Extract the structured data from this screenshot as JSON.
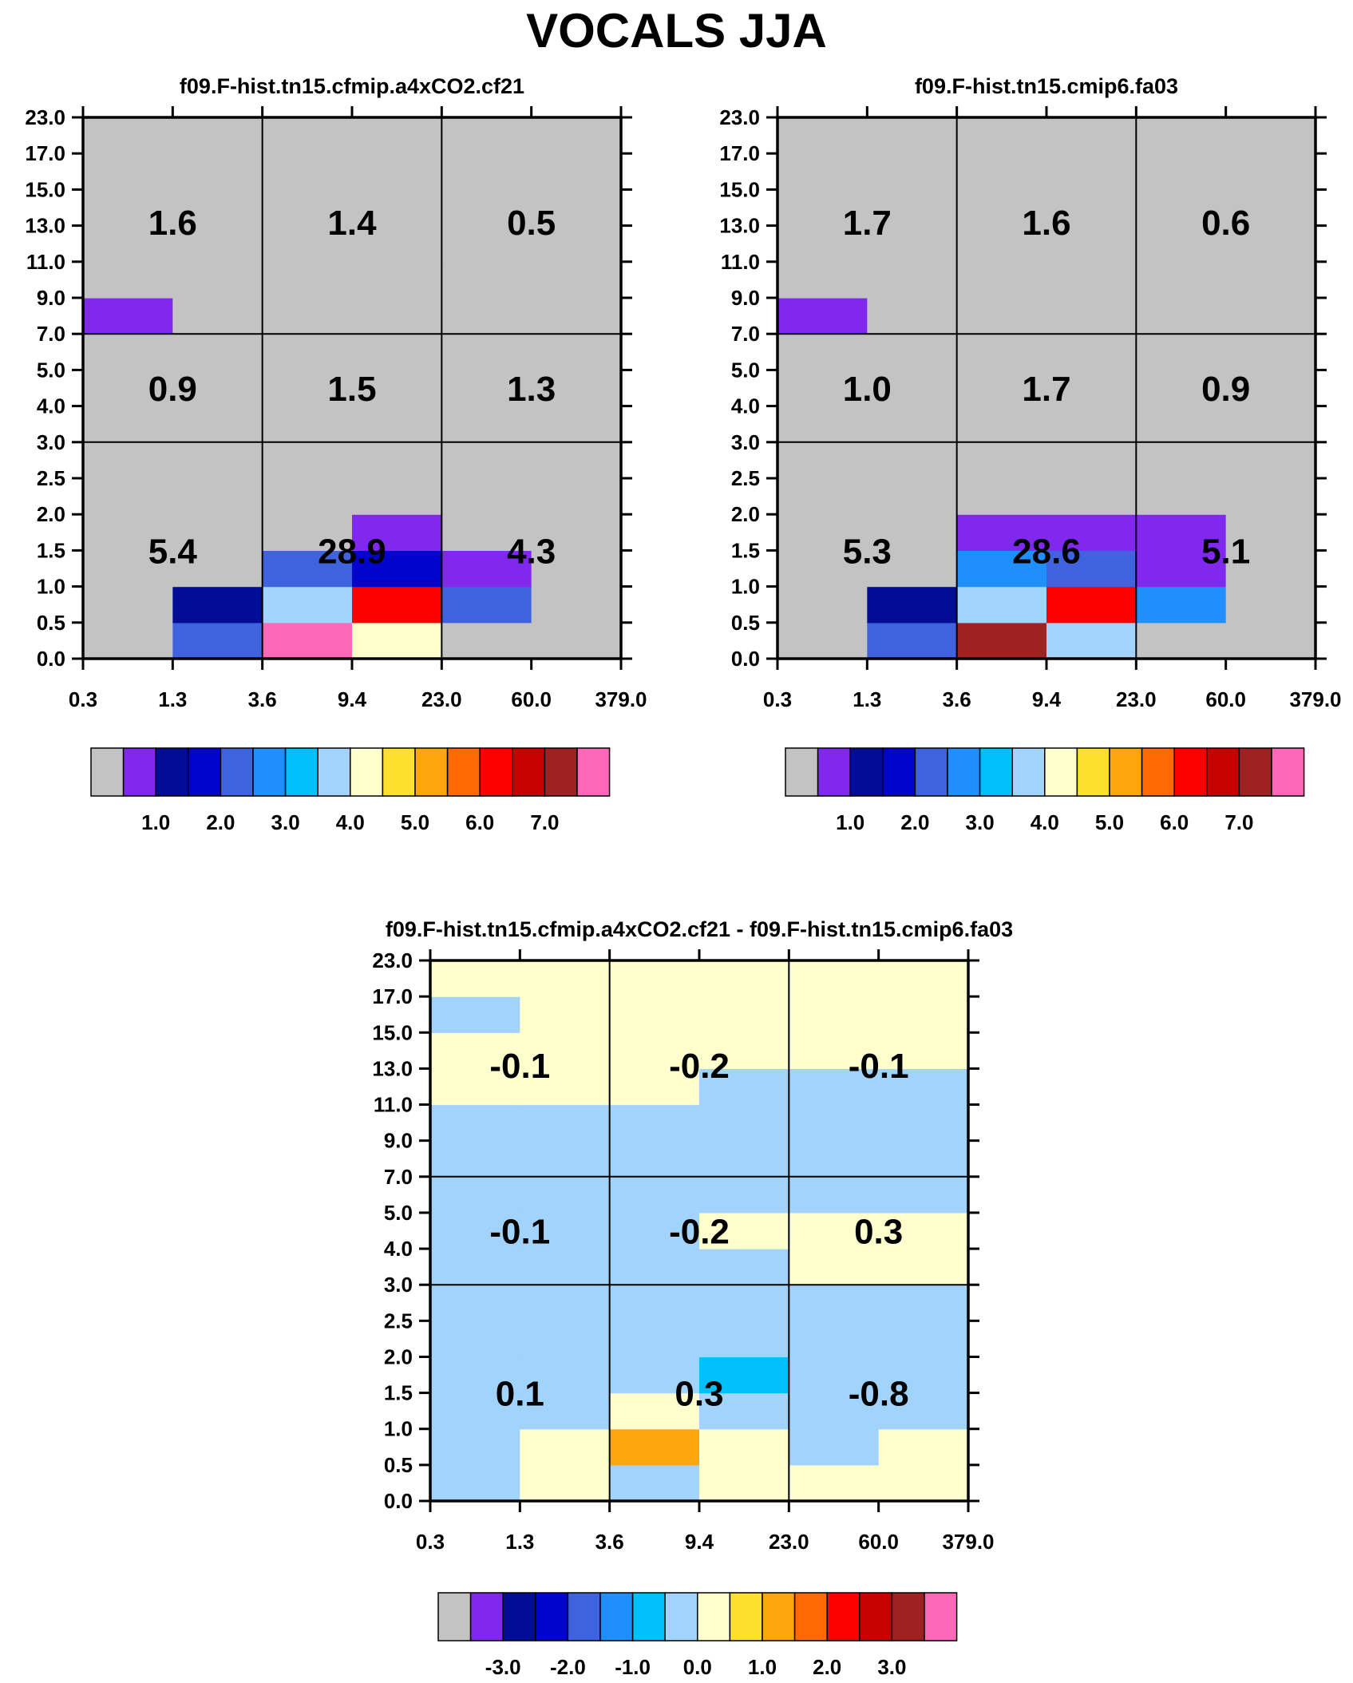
{
  "title": "VOCALS JJA",
  "colors": {
    "missing": "#c3c3c3",
    "palette": [
      "#c3c3c3",
      "#8028ee",
      "#000d94",
      "#0105cc",
      "#3f63df",
      "#1e8ffc",
      "#00c0fc",
      "#a2d3fb",
      "#feffcd",
      "#fde02d",
      "#fca60b",
      "#fc6a01",
      "#fc0000",
      "#c70000",
      "#a02121",
      "#fe68b8"
    ]
  },
  "chart_data": [
    {
      "type": "heatmap",
      "title": "f09.F-hist.tn15.cfmip.a4xCO2.cf21",
      "x_ticks": [
        "0.3",
        "1.3",
        "3.6",
        "9.4",
        "23.0",
        "60.0",
        "379.0"
      ],
      "y_ticks": [
        "0.0",
        "0.5",
        "1.0",
        "1.5",
        "2.0",
        "2.5",
        "3.0",
        "4.0",
        "5.0",
        "7.0",
        "9.0",
        "11.0",
        "13.0",
        "15.0",
        "17.0",
        "23.0"
      ],
      "cell_colors": [
        [
          "#c3c3c3",
          "#3f63df",
          "#fe68b8",
          "#feffcd",
          "#c3c3c3",
          "#c3c3c3"
        ],
        [
          "#c3c3c3",
          "#000d94",
          "#a2d3fb",
          "#fc0000",
          "#3f63df",
          "#c3c3c3"
        ],
        [
          "#c3c3c3",
          "#c3c3c3",
          "#3f63df",
          "#0105cc",
          "#8028ee",
          "#c3c3c3"
        ],
        [
          "#c3c3c3",
          "#c3c3c3",
          "#c3c3c3",
          "#8028ee",
          "#c3c3c3",
          "#c3c3c3"
        ],
        [
          "#c3c3c3",
          "#c3c3c3",
          "#c3c3c3",
          "#c3c3c3",
          "#c3c3c3",
          "#c3c3c3"
        ],
        [
          "#c3c3c3",
          "#c3c3c3",
          "#c3c3c3",
          "#c3c3c3",
          "#c3c3c3",
          "#c3c3c3"
        ],
        [
          "#c3c3c3",
          "#c3c3c3",
          "#c3c3c3",
          "#c3c3c3",
          "#c3c3c3",
          "#c3c3c3"
        ],
        [
          "#c3c3c3",
          "#c3c3c3",
          "#c3c3c3",
          "#c3c3c3",
          "#c3c3c3",
          "#c3c3c3"
        ],
        [
          "#c3c3c3",
          "#c3c3c3",
          "#c3c3c3",
          "#c3c3c3",
          "#c3c3c3",
          "#c3c3c3"
        ],
        [
          "#8028ee",
          "#c3c3c3",
          "#c3c3c3",
          "#c3c3c3",
          "#c3c3c3",
          "#c3c3c3"
        ],
        [
          "#c3c3c3",
          "#c3c3c3",
          "#c3c3c3",
          "#c3c3c3",
          "#c3c3c3",
          "#c3c3c3"
        ],
        [
          "#c3c3c3",
          "#c3c3c3",
          "#c3c3c3",
          "#c3c3c3",
          "#c3c3c3",
          "#c3c3c3"
        ],
        [
          "#c3c3c3",
          "#c3c3c3",
          "#c3c3c3",
          "#c3c3c3",
          "#c3c3c3",
          "#c3c3c3"
        ],
        [
          "#c3c3c3",
          "#c3c3c3",
          "#c3c3c3",
          "#c3c3c3",
          "#c3c3c3",
          "#c3c3c3"
        ],
        [
          "#c3c3c3",
          "#c3c3c3",
          "#c3c3c3",
          "#c3c3c3",
          "#c3c3c3",
          "#c3c3c3"
        ]
      ],
      "region_values": {
        "low": [
          "5.4",
          "28.9",
          "4.3"
        ],
        "mid": [
          "0.9",
          "1.5",
          "1.3"
        ],
        "high": [
          "1.6",
          "1.4",
          "0.5"
        ]
      },
      "colorbar": {
        "colors": [
          "#c3c3c3",
          "#8028ee",
          "#000d94",
          "#0105cc",
          "#3f63df",
          "#1e8ffc",
          "#00c0fc",
          "#a2d3fb",
          "#feffcd",
          "#fde02d",
          "#fca60b",
          "#fc6a01",
          "#fc0000",
          "#c70000",
          "#a02121",
          "#fe68b8"
        ],
        "labels": [
          "1.0",
          "2.0",
          "3.0",
          "4.0",
          "5.0",
          "6.0",
          "7.0"
        ]
      }
    },
    {
      "type": "heatmap",
      "title": "f09.F-hist.tn15.cmip6.fa03",
      "x_ticks": [
        "0.3",
        "1.3",
        "3.6",
        "9.4",
        "23.0",
        "60.0",
        "379.0"
      ],
      "y_ticks": [
        "0.0",
        "0.5",
        "1.0",
        "1.5",
        "2.0",
        "2.5",
        "3.0",
        "4.0",
        "5.0",
        "7.0",
        "9.0",
        "11.0",
        "13.0",
        "15.0",
        "17.0",
        "23.0"
      ],
      "cell_colors": [
        [
          "#c3c3c3",
          "#3f63df",
          "#a02121",
          "#a2d3fb",
          "#c3c3c3",
          "#c3c3c3"
        ],
        [
          "#c3c3c3",
          "#000d94",
          "#a2d3fb",
          "#fc0000",
          "#1e8ffc",
          "#c3c3c3"
        ],
        [
          "#c3c3c3",
          "#c3c3c3",
          "#1e8ffc",
          "#3f63df",
          "#8028ee",
          "#c3c3c3"
        ],
        [
          "#c3c3c3",
          "#c3c3c3",
          "#8028ee",
          "#8028ee",
          "#8028ee",
          "#c3c3c3"
        ],
        [
          "#c3c3c3",
          "#c3c3c3",
          "#c3c3c3",
          "#c3c3c3",
          "#c3c3c3",
          "#c3c3c3"
        ],
        [
          "#c3c3c3",
          "#c3c3c3",
          "#c3c3c3",
          "#c3c3c3",
          "#c3c3c3",
          "#c3c3c3"
        ],
        [
          "#c3c3c3",
          "#c3c3c3",
          "#c3c3c3",
          "#c3c3c3",
          "#c3c3c3",
          "#c3c3c3"
        ],
        [
          "#c3c3c3",
          "#c3c3c3",
          "#c3c3c3",
          "#c3c3c3",
          "#c3c3c3",
          "#c3c3c3"
        ],
        [
          "#c3c3c3",
          "#c3c3c3",
          "#c3c3c3",
          "#c3c3c3",
          "#c3c3c3",
          "#c3c3c3"
        ],
        [
          "#8028ee",
          "#c3c3c3",
          "#c3c3c3",
          "#c3c3c3",
          "#c3c3c3",
          "#c3c3c3"
        ],
        [
          "#c3c3c3",
          "#c3c3c3",
          "#c3c3c3",
          "#c3c3c3",
          "#c3c3c3",
          "#c3c3c3"
        ],
        [
          "#c3c3c3",
          "#c3c3c3",
          "#c3c3c3",
          "#c3c3c3",
          "#c3c3c3",
          "#c3c3c3"
        ],
        [
          "#c3c3c3",
          "#c3c3c3",
          "#c3c3c3",
          "#c3c3c3",
          "#c3c3c3",
          "#c3c3c3"
        ],
        [
          "#c3c3c3",
          "#c3c3c3",
          "#c3c3c3",
          "#c3c3c3",
          "#c3c3c3",
          "#c3c3c3"
        ],
        [
          "#c3c3c3",
          "#c3c3c3",
          "#c3c3c3",
          "#c3c3c3",
          "#c3c3c3",
          "#c3c3c3"
        ]
      ],
      "region_values": {
        "low": [
          "5.3",
          "28.6",
          "5.1"
        ],
        "mid": [
          "1.0",
          "1.7",
          "0.9"
        ],
        "high": [
          "1.7",
          "1.6",
          "0.6"
        ]
      },
      "colorbar": {
        "colors": [
          "#c3c3c3",
          "#8028ee",
          "#000d94",
          "#0105cc",
          "#3f63df",
          "#1e8ffc",
          "#00c0fc",
          "#a2d3fb",
          "#feffcd",
          "#fde02d",
          "#fca60b",
          "#fc6a01",
          "#fc0000",
          "#c70000",
          "#a02121",
          "#fe68b8"
        ],
        "labels": [
          "1.0",
          "2.0",
          "3.0",
          "4.0",
          "5.0",
          "6.0",
          "7.0"
        ]
      }
    },
    {
      "type": "heatmap",
      "title": "f09.F-hist.tn15.cfmip.a4xCO2.cf21 - f09.F-hist.tn15.cmip6.fa03",
      "x_ticks": [
        "0.3",
        "1.3",
        "3.6",
        "9.4",
        "23.0",
        "60.0",
        "379.0"
      ],
      "y_ticks": [
        "0.0",
        "0.5",
        "1.0",
        "1.5",
        "2.0",
        "2.5",
        "3.0",
        "4.0",
        "5.0",
        "7.0",
        "9.0",
        "11.0",
        "13.0",
        "15.0",
        "17.0",
        "23.0"
      ],
      "cell_colors": [
        [
          "#a2d3fb",
          "#feffcd",
          "#a2d3fb",
          "#feffcd",
          "#feffcd",
          "#feffcd"
        ],
        [
          "#a2d3fb",
          "#feffcd",
          "#fca60b",
          "#feffcd",
          "#a2d3fb",
          "#feffcd"
        ],
        [
          "#a2d3fb",
          "#a2d3fb",
          "#feffcd",
          "#a2d3fb",
          "#a2d3fb",
          "#a2d3fb"
        ],
        [
          "#a2d3fb",
          "#a2d3fb",
          "#a2d3fb",
          "#00c0fc",
          "#a2d3fb",
          "#a2d3fb"
        ],
        [
          "#a2d3fb",
          "#a2d3fb",
          "#a2d3fb",
          "#a2d3fb",
          "#a2d3fb",
          "#a2d3fb"
        ],
        [
          "#a2d3fb",
          "#a2d3fb",
          "#a2d3fb",
          "#a2d3fb",
          "#a2d3fb",
          "#a2d3fb"
        ],
        [
          "#a2d3fb",
          "#a2d3fb",
          "#a2d3fb",
          "#a2d3fb",
          "#feffcd",
          "#feffcd"
        ],
        [
          "#a2d3fb",
          "#a2d3fb",
          "#a2d3fb",
          "#feffcd",
          "#feffcd",
          "#feffcd"
        ],
        [
          "#a2d3fb",
          "#a2d3fb",
          "#a2d3fb",
          "#a2d3fb",
          "#a2d3fb",
          "#a2d3fb"
        ],
        [
          "#a2d3fb",
          "#a2d3fb",
          "#a2d3fb",
          "#a2d3fb",
          "#a2d3fb",
          "#a2d3fb"
        ],
        [
          "#a2d3fb",
          "#a2d3fb",
          "#a2d3fb",
          "#a2d3fb",
          "#a2d3fb",
          "#a2d3fb"
        ],
        [
          "#feffcd",
          "#feffcd",
          "#feffcd",
          "#a2d3fb",
          "#a2d3fb",
          "#a2d3fb"
        ],
        [
          "#feffcd",
          "#feffcd",
          "#feffcd",
          "#feffcd",
          "#feffcd",
          "#feffcd"
        ],
        [
          "#a2d3fb",
          "#feffcd",
          "#feffcd",
          "#feffcd",
          "#feffcd",
          "#feffcd"
        ],
        [
          "#feffcd",
          "#feffcd",
          "#feffcd",
          "#feffcd",
          "#feffcd",
          "#feffcd"
        ]
      ],
      "region_values": {
        "low": [
          "0.1",
          "0.3",
          "-0.8"
        ],
        "mid": [
          "-0.1",
          "-0.2",
          "0.3"
        ],
        "high": [
          "-0.1",
          "-0.2",
          "-0.1"
        ]
      },
      "colorbar": {
        "colors": [
          "#c3c3c3",
          "#8028ee",
          "#000d94",
          "#0105cc",
          "#3f63df",
          "#1e8ffc",
          "#00c0fc",
          "#a2d3fb",
          "#feffcd",
          "#fde02d",
          "#fca60b",
          "#fc6a01",
          "#fc0000",
          "#c70000",
          "#a02121",
          "#fe68b8"
        ],
        "labels": [
          "-3.0",
          "-2.0",
          "-1.0",
          "0.0",
          "1.0",
          "2.0",
          "3.0"
        ]
      }
    }
  ]
}
